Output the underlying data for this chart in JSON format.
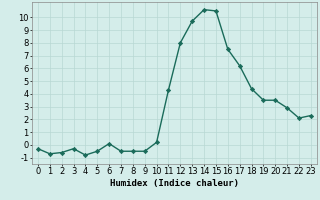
{
  "x": [
    0,
    1,
    2,
    3,
    4,
    5,
    6,
    7,
    8,
    9,
    10,
    11,
    12,
    13,
    14,
    15,
    16,
    17,
    18,
    19,
    20,
    21,
    22,
    23
  ],
  "y": [
    -0.3,
    -0.7,
    -0.6,
    -0.3,
    -0.8,
    -0.5,
    0.1,
    -0.5,
    -0.5,
    -0.5,
    0.2,
    4.3,
    8.0,
    9.7,
    10.6,
    10.5,
    7.5,
    6.2,
    4.4,
    3.5,
    3.5,
    2.9,
    2.1,
    2.3
  ],
  "line_color": "#1a6b5a",
  "marker": "D",
  "markersize": 2.2,
  "linewidth": 1.0,
  "bg_color": "#d4edea",
  "grid_color": "#b8d8d4",
  "xlabel": "Humidex (Indice chaleur)",
  "xlim": [
    -0.5,
    23.5
  ],
  "ylim": [
    -1.5,
    11.2
  ],
  "xticks": [
    0,
    1,
    2,
    3,
    4,
    5,
    6,
    7,
    8,
    9,
    10,
    11,
    12,
    13,
    14,
    15,
    16,
    17,
    18,
    19,
    20,
    21,
    22,
    23
  ],
  "yticks": [
    -1,
    0,
    1,
    2,
    3,
    4,
    5,
    6,
    7,
    8,
    9,
    10
  ],
  "xlabel_fontsize": 6.5,
  "tick_fontsize": 6.0
}
